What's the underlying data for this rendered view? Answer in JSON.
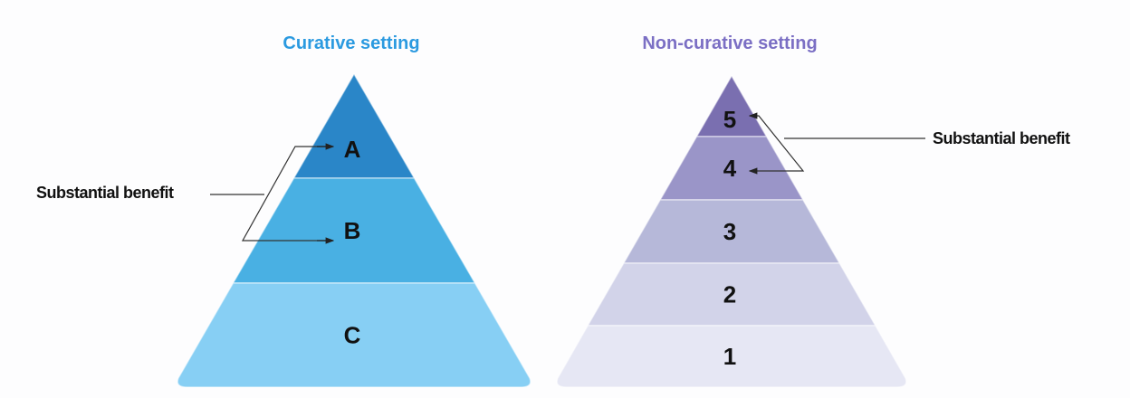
{
  "curative": {
    "title": "Curative setting",
    "title_color": "#2b9ae0",
    "levels": [
      {
        "label": "A",
        "color": "#2a86c8"
      },
      {
        "label": "B",
        "color": "#49b0e3"
      },
      {
        "label": "C",
        "color": "#87cff4"
      }
    ],
    "bracket_label": "Substantial benefit"
  },
  "non_curative": {
    "title": "Non-curative setting",
    "title_color": "#7b6fc4",
    "levels": [
      {
        "label": "5",
        "color": "#7a6fb0"
      },
      {
        "label": "4",
        "color": "#9a95c8"
      },
      {
        "label": "3",
        "color": "#b6b8d9"
      },
      {
        "label": "2",
        "color": "#d2d3e9"
      },
      {
        "label": "1",
        "color": "#e6e7f4"
      }
    ],
    "bracket_label": "Substantial benefit"
  }
}
